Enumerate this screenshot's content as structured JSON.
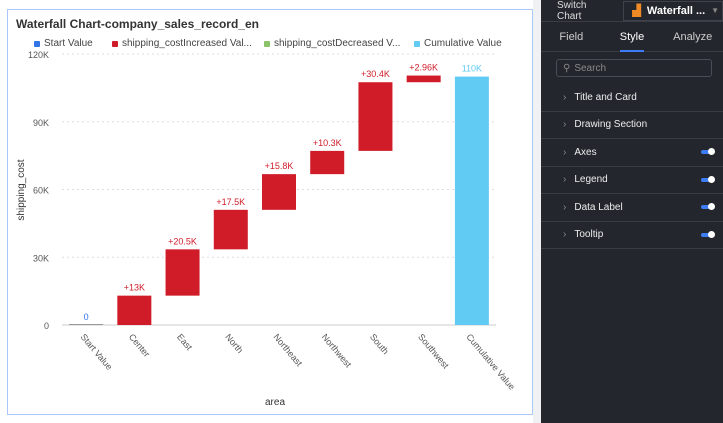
{
  "chart_title": "Waterfall Chart-company_sales_record_en",
  "legend": [
    {
      "label": "Start Value",
      "color": "#3273e6"
    },
    {
      "label": "shipping_costIncreased Val...",
      "color": "#d01c29"
    },
    {
      "label": "shipping_costDecreased V...",
      "color": "#8bc26a"
    },
    {
      "label": "Cumulative Value",
      "color": "#62cbf3"
    }
  ],
  "chart_data": {
    "type": "waterfall",
    "xlabel": "area",
    "ylabel": "shipping_cost",
    "ylim": [
      0,
      120000
    ],
    "yticks": [
      "0",
      "30K",
      "60K",
      "90K",
      "120K"
    ],
    "ytick_values": [
      0,
      30000,
      60000,
      90000,
      120000
    ],
    "grid": true,
    "legend_position": "top",
    "categories": [
      "Start Value",
      "Center",
      "East",
      "North",
      "Northeast",
      "Northwest",
      "South",
      "Southwest",
      "Cumulative Value"
    ],
    "values": [
      0,
      13000,
      20500,
      17500,
      15800,
      10300,
      30400,
      2960,
      110000
    ],
    "labels": [
      "0",
      "+13K",
      "+20.5K",
      "+17.5K",
      "+15.8K",
      "+10.3K",
      "+30.4K",
      "+2.96K",
      "110K"
    ],
    "kinds": [
      "start",
      "inc",
      "inc",
      "inc",
      "inc",
      "inc",
      "inc",
      "inc",
      "total"
    ]
  },
  "panel": {
    "switch_chart": "Switch Chart",
    "chart_type": "Waterfall ...",
    "tabs": [
      "Field",
      "Style",
      "Analyze"
    ],
    "search_placeholder": "Search",
    "sections": [
      {
        "label": "Title and Card",
        "toggle": false
      },
      {
        "label": "Drawing Section",
        "toggle": false
      },
      {
        "label": "Axes",
        "toggle": true
      },
      {
        "label": "Legend",
        "toggle": true
      },
      {
        "label": "Data Label",
        "toggle": true
      },
      {
        "label": "Tooltip",
        "toggle": true
      }
    ]
  }
}
